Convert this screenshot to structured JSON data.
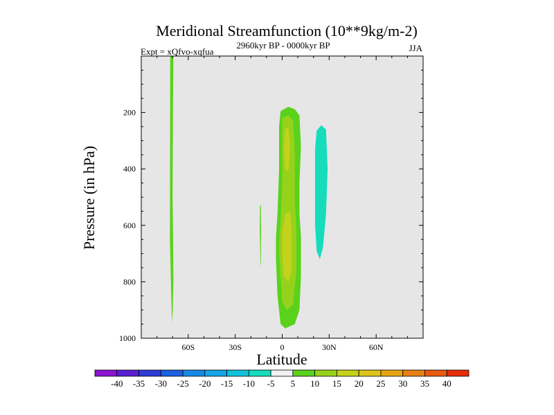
{
  "chart_data": {
    "type": "heatmap",
    "title": "Meridional Streamfunction (10**9kg/m-2)",
    "subtitle_left": "Expt = xQfvo-xqfua",
    "subtitle_center": "2960kyr BP - 0000kyr BP",
    "subtitle_right": "JJA",
    "xlabel": "Latitude",
    "ylabel": "Pressure (in hPa)",
    "xlim": [
      -90,
      90
    ],
    "ylim": [
      1000,
      0
    ],
    "x_ticks": [
      {
        "value": -60,
        "label": "60S"
      },
      {
        "value": -30,
        "label": "30S"
      },
      {
        "value": 0,
        "label": "0"
      },
      {
        "value": 30,
        "label": "30N"
      },
      {
        "value": 60,
        "label": "60N"
      }
    ],
    "y_ticks": [
      {
        "value": 200,
        "label": "200"
      },
      {
        "value": 400,
        "label": "400"
      },
      {
        "value": 600,
        "label": "600"
      },
      {
        "value": 800,
        "label": "800"
      },
      {
        "value": 1000,
        "label": "1000"
      }
    ],
    "background_color": "#e6e6e6",
    "colorbar": {
      "levels": [
        -40,
        -35,
        -30,
        -25,
        -20,
        -15,
        -10,
        -5,
        5,
        10,
        15,
        20,
        25,
        30,
        35,
        40
      ],
      "labels": [
        "-40",
        "-35",
        "-30",
        "-25",
        "-20",
        "-15",
        "-10",
        "-5",
        "5",
        "10",
        "15",
        "20",
        "25",
        "30",
        "35",
        "40"
      ],
      "colors": [
        "#8a14d2",
        "#5a1ed2",
        "#2e3cd6",
        "#1c62e0",
        "#1888e6",
        "#14a6e6",
        "#12c2d8",
        "#16dcbc",
        "#f0f0f0",
        "#5ad21c",
        "#96d21c",
        "#c4d21c",
        "#dcc41c",
        "#e6a614",
        "#e68012",
        "#e85a10",
        "#e82c0c"
      ]
    },
    "regions": [
      {
        "name": "south-high-latitude-band",
        "value_range": "5 to 10",
        "color": "#5ad21c",
        "outline": [
          [
            -71.5,
            0
          ],
          [
            -69.5,
            0
          ],
          [
            -69.8,
            200
          ],
          [
            -70.0,
            500
          ],
          [
            -69.7,
            650
          ],
          [
            -69.5,
            800
          ],
          [
            -69.9,
            900
          ],
          [
            -70.4,
            945
          ],
          [
            -71.0,
            820
          ],
          [
            -71.7,
            650
          ],
          [
            -71.6,
            300
          ]
        ]
      },
      {
        "name": "tropical-positive-outer",
        "value_range": "5 to 10",
        "color": "#5ad21c",
        "outline": [
          [
            -1,
            195
          ],
          [
            4,
            180
          ],
          [
            8,
            188
          ],
          [
            11,
            210
          ],
          [
            12,
            320
          ],
          [
            11,
            450
          ],
          [
            11,
            560
          ],
          [
            12,
            640
          ],
          [
            12,
            780
          ],
          [
            11,
            900
          ],
          [
            8,
            950
          ],
          [
            2,
            965
          ],
          [
            -1,
            950
          ],
          [
            -3,
            850
          ],
          [
            -4,
            720
          ],
          [
            -4,
            640
          ],
          [
            -3,
            560
          ],
          [
            -2,
            400
          ],
          [
            -2,
            250
          ]
        ]
      },
      {
        "name": "tropical-positive-inner",
        "value_range": "10 to 15",
        "color": "#96d21c",
        "outline": [
          [
            0,
            220
          ],
          [
            4,
            210
          ],
          [
            7,
            230
          ],
          [
            8,
            340
          ],
          [
            8,
            500
          ],
          [
            9,
            620
          ],
          [
            9,
            760
          ],
          [
            7,
            880
          ],
          [
            3,
            900
          ],
          [
            0,
            870
          ],
          [
            -1,
            780
          ],
          [
            -2,
            680
          ],
          [
            -1,
            580
          ],
          [
            0,
            450
          ],
          [
            0,
            300
          ]
        ]
      },
      {
        "name": "tropical-positive-core",
        "value_range": "15 to 20",
        "color": "#c4d21c",
        "outline": [
          [
            2,
            560
          ],
          [
            5,
            550
          ],
          [
            6,
            620
          ],
          [
            6,
            760
          ],
          [
            4,
            800
          ],
          [
            1,
            780
          ],
          [
            0,
            700
          ],
          [
            0,
            620
          ]
        ]
      },
      {
        "name": "tropical-positive-core-upper",
        "value_range": "15 to 20",
        "color": "#c4d21c",
        "outline": [
          [
            2,
            260
          ],
          [
            4,
            250
          ],
          [
            5,
            330
          ],
          [
            4,
            410
          ],
          [
            2,
            400
          ],
          [
            1,
            330
          ]
        ]
      },
      {
        "name": "sliver-near-15s",
        "value_range": "5 to 10",
        "color": "#5ad21c",
        "outline": [
          [
            -14.2,
            530
          ],
          [
            -13.6,
            530
          ],
          [
            -13.5,
            620
          ],
          [
            -13.6,
            740
          ],
          [
            -13.9,
            740
          ],
          [
            -14.3,
            620
          ]
        ]
      },
      {
        "name": "northern-negative-cell",
        "value_range": "-10 to -5",
        "color": "#16dcbc",
        "outline": [
          [
            22,
            265
          ],
          [
            25,
            245
          ],
          [
            28,
            260
          ],
          [
            29,
            400
          ],
          [
            28,
            560
          ],
          [
            27,
            620
          ],
          [
            26,
            680
          ],
          [
            24,
            720
          ],
          [
            22,
            690
          ],
          [
            21,
            600
          ],
          [
            21,
            450
          ],
          [
            21,
            330
          ]
        ]
      }
    ]
  }
}
